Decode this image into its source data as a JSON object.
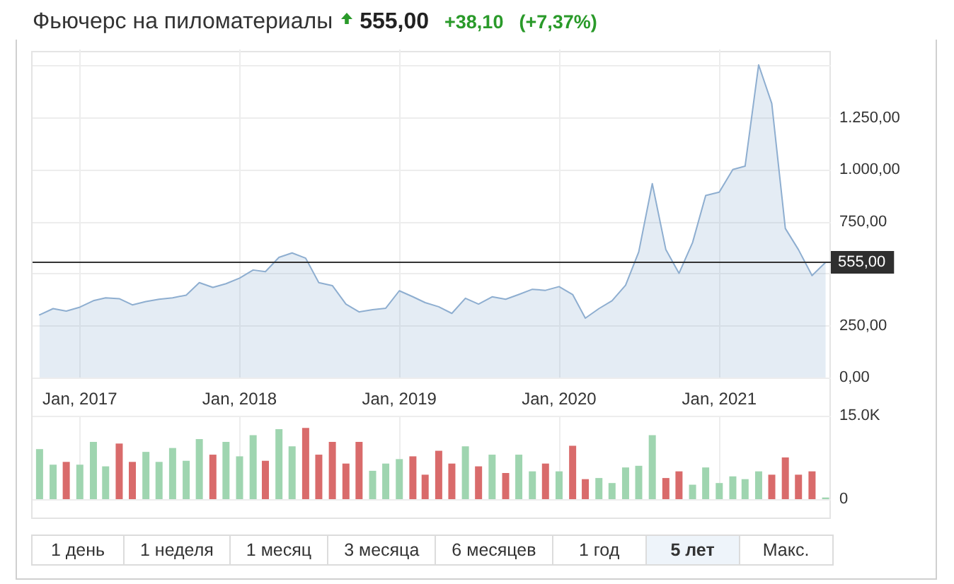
{
  "chart_data": [
    {
      "type": "area",
      "title": "Фьючерс на пиломатериалы",
      "annotations": [
        "555,00",
        "+38,10",
        "(+7,37%)"
      ],
      "x": [
        "2016-10",
        "2016-11",
        "2016-12",
        "2017-01",
        "2017-02",
        "2017-03",
        "2017-04",
        "2017-05",
        "2017-06",
        "2017-07",
        "2017-08",
        "2017-09",
        "2017-10",
        "2017-11",
        "2017-12",
        "2018-01",
        "2018-02",
        "2018-03",
        "2018-04",
        "2018-05",
        "2018-06",
        "2018-07",
        "2018-08",
        "2018-09",
        "2018-10",
        "2018-11",
        "2018-12",
        "2019-01",
        "2019-02",
        "2019-03",
        "2019-04",
        "2019-05",
        "2019-06",
        "2019-07",
        "2019-08",
        "2019-09",
        "2019-10",
        "2019-11",
        "2019-12",
        "2020-01",
        "2020-02",
        "2020-03",
        "2020-04",
        "2020-05",
        "2020-06",
        "2020-07",
        "2020-08",
        "2020-09",
        "2020-10",
        "2020-11",
        "2020-12",
        "2021-01",
        "2021-02",
        "2021-03",
        "2021-04",
        "2021-05",
        "2021-06",
        "2021-07",
        "2021-08",
        "2021-09"
      ],
      "values": [
        302,
        332,
        320,
        339,
        370,
        384,
        380,
        350,
        366,
        377,
        384,
        397,
        457,
        434,
        452,
        479,
        518,
        510,
        579,
        600,
        575,
        457,
        443,
        354,
        316,
        327,
        334,
        418,
        389,
        361,
        341,
        309,
        382,
        354,
        389,
        377,
        400,
        425,
        420,
        438,
        400,
        286,
        332,
        370,
        445,
        605,
        934,
        616,
        502,
        650,
        877,
        893,
        1002,
        1018,
        1506,
        1320,
        718,
        616,
        491,
        555
      ],
      "color": "#8eaed0",
      "xlim": [
        "2016-09-15",
        "2021-09-13"
      ],
      "xticks": [
        {
          "value": "2017-01",
          "label": "Jan, 2017"
        },
        {
          "value": "2018-01",
          "label": "Jan, 2018"
        },
        {
          "value": "2019-01",
          "label": "Jan, 2019"
        },
        {
          "value": "2020-01",
          "label": "Jan, 2020"
        },
        {
          "value": "2021-01",
          "label": "Jan, 2021"
        }
      ],
      "ylim": [
        0,
        1580
      ],
      "yticks": [
        {
          "value": 0,
          "label": "0,00"
        },
        {
          "value": 250,
          "label": "250,00"
        },
        {
          "value": 500,
          "label": null
        },
        {
          "value": 750,
          "label": "750,00"
        },
        {
          "value": 1000,
          "label": "1.000,00"
        },
        {
          "value": 1250,
          "label": "1.250,00"
        },
        {
          "value": 1500,
          "label": null
        }
      ],
      "grid": true,
      "ref_lines": [
        {
          "axis": "y",
          "value": 555,
          "label": "555,00",
          "color": "#333333"
        }
      ]
    },
    {
      "type": "bar",
      "x": [
        "2016-10",
        "2016-11",
        "2016-12",
        "2017-01",
        "2017-02",
        "2017-03",
        "2017-04",
        "2017-05",
        "2017-06",
        "2017-07",
        "2017-08",
        "2017-09",
        "2017-10",
        "2017-11",
        "2017-12",
        "2018-01",
        "2018-02",
        "2018-03",
        "2018-04",
        "2018-05",
        "2018-06",
        "2018-07",
        "2018-08",
        "2018-09",
        "2018-10",
        "2018-11",
        "2018-12",
        "2019-01",
        "2019-02",
        "2019-03",
        "2019-04",
        "2019-05",
        "2019-06",
        "2019-07",
        "2019-08",
        "2019-09",
        "2019-10",
        "2019-11",
        "2019-12",
        "2020-01",
        "2020-02",
        "2020-03",
        "2020-04",
        "2020-05",
        "2020-06",
        "2020-07",
        "2020-08",
        "2020-09",
        "2020-10",
        "2020-11",
        "2020-12",
        "2021-01",
        "2021-02",
        "2021-03",
        "2021-04",
        "2021-05",
        "2021-06",
        "2021-07",
        "2021-08",
        "2021-09"
      ],
      "values": [
        9000,
        6200,
        6700,
        6200,
        10300,
        5900,
        10000,
        6700,
        8500,
        6700,
        9200,
        6900,
        10800,
        8000,
        10300,
        7700,
        11500,
        6900,
        12600,
        9500,
        12800,
        8000,
        10300,
        6400,
        10300,
        5100,
        6400,
        7200,
        7700,
        4400,
        8700,
        6400,
        9500,
        5900,
        8000,
        4700,
        8000,
        5000,
        6400,
        5000,
        9600,
        3600,
        3800,
        2900,
        5700,
        6000,
        11500,
        3800,
        5000,
        2600,
        5700,
        2900,
        4100,
        3600,
        5000,
        4400,
        7500,
        4400,
        5000,
        300
      ],
      "colors": [
        "#9fd5b0",
        "#9fd5b0",
        "#d96b6b",
        "#9fd5b0",
        "#9fd5b0",
        "#9fd5b0",
        "#d96b6b",
        "#d96b6b",
        "#9fd5b0",
        "#9fd5b0",
        "#9fd5b0",
        "#9fd5b0",
        "#9fd5b0",
        "#d96b6b",
        "#9fd5b0",
        "#9fd5b0",
        "#9fd5b0",
        "#d96b6b",
        "#9fd5b0",
        "#9fd5b0",
        "#d96b6b",
        "#d96b6b",
        "#d96b6b",
        "#d96b6b",
        "#d96b6b",
        "#9fd5b0",
        "#9fd5b0",
        "#9fd5b0",
        "#d96b6b",
        "#d96b6b",
        "#d96b6b",
        "#d96b6b",
        "#9fd5b0",
        "#d96b6b",
        "#9fd5b0",
        "#d96b6b",
        "#9fd5b0",
        "#9fd5b0",
        "#d96b6b",
        "#9fd5b0",
        "#d96b6b",
        "#d96b6b",
        "#9fd5b0",
        "#9fd5b0",
        "#9fd5b0",
        "#9fd5b0",
        "#9fd5b0",
        "#d96b6b",
        "#d96b6b",
        "#9fd5b0",
        "#9fd5b0",
        "#9fd5b0",
        "#9fd5b0",
        "#9fd5b0",
        "#9fd5b0",
        "#d96b6b",
        "#d96b6b",
        "#d96b6b",
        "#d96b6b",
        "#9fd5b0"
      ],
      "xlim": [
        "2016-09-15",
        "2021-09-13"
      ],
      "xticks": [
        {
          "value": "2017-01",
          "label": null
        },
        {
          "value": "2018-01",
          "label": null
        },
        {
          "value": "2019-01",
          "label": null
        },
        {
          "value": "2020-01",
          "label": null
        },
        {
          "value": "2021-01",
          "label": null
        }
      ],
      "ylim": [
        0,
        15000
      ],
      "yticks": [
        0,
        {
          "value": 15000,
          "label": "15.0K"
        }
      ],
      "grid": true,
      "tick_labels": "y"
    },
    {
      "type": "other",
      "annotations": [
        "1 день",
        "1 неделя",
        "1 месяц",
        "3 месяца",
        "6 месяцев",
        "1 год",
        "5 лет",
        "Макс."
      ]
    }
  ]
}
